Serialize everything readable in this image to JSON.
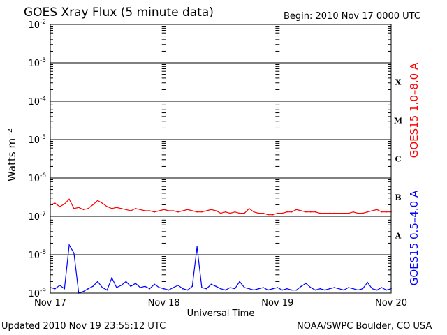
{
  "header": {
    "title": "GOES Xray Flux (5 minute data)",
    "begin": "Begin:  2010 Nov 17 0000 UTC"
  },
  "footer": {
    "updated": "Updated 2010 Nov 19 23:55:12 UTC",
    "credit": "NOAA/SWPC Boulder, CO USA"
  },
  "colors": {
    "long_channel": "#ff0000",
    "short_channel": "#0000ff",
    "axis": "#000000"
  },
  "chart_data": {
    "type": "line",
    "title": "GOES Xray Flux (5 minute data)",
    "xlabel": "Universal Time",
    "ylabel": "Watts m⁻²",
    "yscale": "log",
    "ylim": [
      1e-09,
      0.01
    ],
    "xlim": [
      0,
      72
    ],
    "x_unit": "hours since 2010 Nov 17 0000 UTC",
    "x_ticks": [
      {
        "x": 0,
        "label": "Nov 17"
      },
      {
        "x": 24,
        "label": "Nov 18"
      },
      {
        "x": 48,
        "label": "Nov 19"
      },
      {
        "x": 72,
        "label": "Nov 20"
      }
    ],
    "y_ticks": [
      {
        "value": 1e-09,
        "mant": "10",
        "exp": "-9"
      },
      {
        "value": 1e-08,
        "mant": "10",
        "exp": "-8"
      },
      {
        "value": 1e-07,
        "mant": "10",
        "exp": "-7"
      },
      {
        "value": 1e-06,
        "mant": "10",
        "exp": "-6"
      },
      {
        "value": 1e-05,
        "mant": "10",
        "exp": "-5"
      },
      {
        "value": 0.0001,
        "mant": "10",
        "exp": "-4"
      },
      {
        "value": 0.001,
        "mant": "10",
        "exp": "-3"
      },
      {
        "value": 0.01,
        "mant": "10",
        "exp": "-2"
      }
    ],
    "grid": "horizontal lines at each decade",
    "flare_classes": [
      {
        "label": "A",
        "level": 1e-08
      },
      {
        "label": "B",
        "level": 1e-07
      },
      {
        "label": "C",
        "level": 1e-06
      },
      {
        "label": "M",
        "level": 1e-05
      },
      {
        "label": "X",
        "level": 0.0001
      }
    ],
    "series": [
      {
        "name": "GOES15 1.0–8.0 A",
        "color": "#ff0000",
        "x": [
          0,
          1,
          2,
          3,
          4,
          5,
          6,
          7,
          8,
          9,
          10,
          11,
          12,
          13,
          14,
          15,
          16,
          17,
          18,
          19,
          20,
          21,
          22,
          23,
          24,
          25,
          26,
          27,
          28,
          29,
          30,
          31,
          32,
          33,
          34,
          35,
          36,
          37,
          38,
          39,
          40,
          41,
          42,
          43,
          44,
          45,
          46,
          47,
          48,
          49,
          50,
          51,
          52,
          53,
          54,
          55,
          56,
          57,
          58,
          59,
          60,
          61,
          62,
          63,
          64,
          65,
          66,
          67,
          68,
          69,
          70,
          71,
          72
        ],
        "values": [
          2e-07,
          2.2e-07,
          1.8e-07,
          2.1e-07,
          2.8e-07,
          1.6e-07,
          1.7e-07,
          1.5e-07,
          1.6e-07,
          2e-07,
          2.6e-07,
          2.2e-07,
          1.8e-07,
          1.6e-07,
          1.7e-07,
          1.6e-07,
          1.5e-07,
          1.4e-07,
          1.6e-07,
          1.5e-07,
          1.4e-07,
          1.4e-07,
          1.3e-07,
          1.4e-07,
          1.5e-07,
          1.4e-07,
          1.4e-07,
          1.3e-07,
          1.4e-07,
          1.5e-07,
          1.4e-07,
          1.3e-07,
          1.3e-07,
          1.4e-07,
          1.5e-07,
          1.4e-07,
          1.2e-07,
          1.3e-07,
          1.2e-07,
          1.3e-07,
          1.2e-07,
          1.2e-07,
          1.6e-07,
          1.3e-07,
          1.2e-07,
          1.2e-07,
          1.1e-07,
          1.1e-07,
          1.2e-07,
          1.2e-07,
          1.3e-07,
          1.3e-07,
          1.5e-07,
          1.4e-07,
          1.3e-07,
          1.3e-07,
          1.3e-07,
          1.2e-07,
          1.2e-07,
          1.2e-07,
          1.2e-07,
          1.2e-07,
          1.2e-07,
          1.2e-07,
          1.3e-07,
          1.2e-07,
          1.2e-07,
          1.3e-07,
          1.4e-07,
          1.5e-07,
          1.3e-07,
          1.3e-07,
          1.3e-07
        ]
      },
      {
        "name": "GOES15 0.5–4.0 A",
        "color": "#0000ff",
        "x": [
          0,
          1,
          2,
          3,
          4,
          5,
          6,
          7,
          8,
          9,
          10,
          11,
          12,
          13,
          14,
          15,
          16,
          17,
          18,
          19,
          20,
          21,
          22,
          23,
          24,
          25,
          26,
          27,
          28,
          29,
          30,
          31,
          32,
          33,
          34,
          35,
          36,
          37,
          38,
          39,
          40,
          41,
          42,
          43,
          44,
          45,
          46,
          47,
          48,
          49,
          50,
          51,
          52,
          53,
          54,
          55,
          56,
          57,
          58,
          59,
          60,
          61,
          62,
          63,
          64,
          65,
          66,
          67,
          68,
          69,
          70,
          71,
          72
        ],
        "values": [
          1.4e-09,
          1.3e-09,
          1.6e-09,
          1.3e-09,
          1.8e-08,
          1.1e-08,
          1e-09,
          1.1e-09,
          1.3e-09,
          1.5e-09,
          2e-09,
          1.4e-09,
          1.2e-09,
          2.5e-09,
          1.4e-09,
          1.6e-09,
          2e-09,
          1.5e-09,
          1.8e-09,
          1.4e-09,
          1.5e-09,
          1.3e-09,
          1.7e-09,
          1.4e-09,
          1.3e-09,
          1.2e-09,
          1.4e-09,
          1.6e-09,
          1.3e-09,
          1.2e-09,
          1.5e-09,
          1.6e-08,
          1.4e-09,
          1.3e-09,
          1.7e-09,
          1.5e-09,
          1.3e-09,
          1.2e-09,
          1.4e-09,
          1.3e-09,
          2e-09,
          1.4e-09,
          1.3e-09,
          1.2e-09,
          1.3e-09,
          1.4e-09,
          1.2e-09,
          1.3e-09,
          1.4e-09,
          1.2e-09,
          1.3e-09,
          1.2e-09,
          1.2e-09,
          1.5e-09,
          1.8e-09,
          1.4e-09,
          1.2e-09,
          1.3e-09,
          1.2e-09,
          1.3e-09,
          1.4e-09,
          1.3e-09,
          1.2e-09,
          1.4e-09,
          1.3e-09,
          1.2e-09,
          1.3e-09,
          1.9e-09,
          1.3e-09,
          1.2e-09,
          1.4e-09,
          1.2e-09,
          1.3e-09
        ]
      }
    ]
  }
}
